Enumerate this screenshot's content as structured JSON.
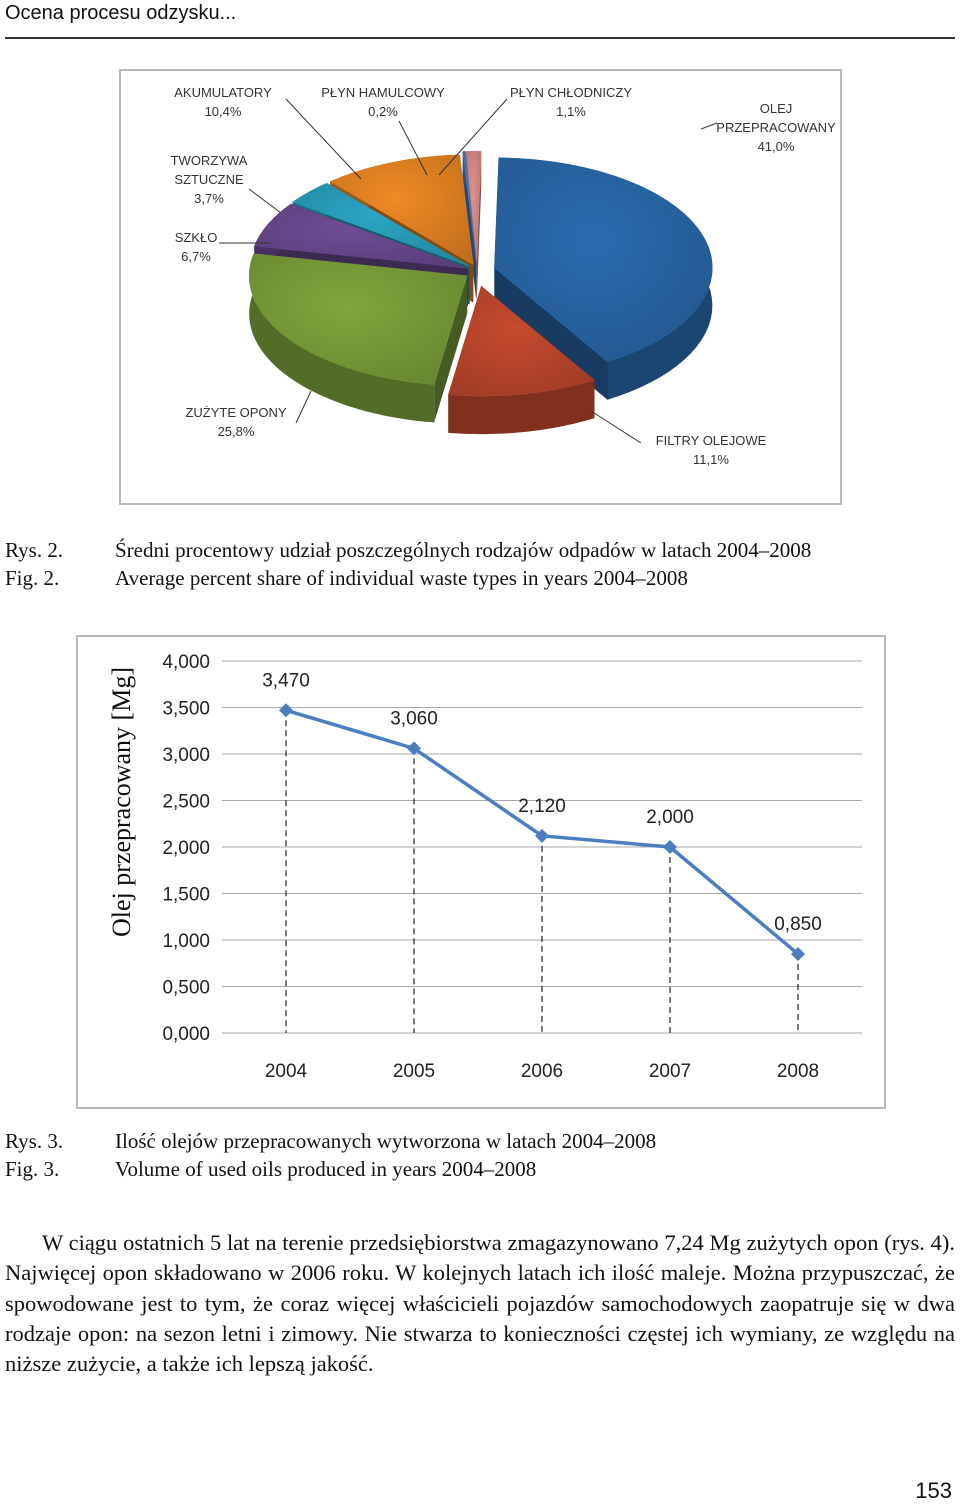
{
  "header": {
    "running_title": "Ocena procesu odzysku..."
  },
  "figure2": {
    "chart_data": {
      "type": "pie",
      "slices": [
        {
          "label": [
            "OLEJ",
            "PRZEPRACOWANY"
          ],
          "percent_text": "41,0%",
          "value": 41.0,
          "color": "#2a6cb0"
        },
        {
          "label": [
            "FILTRY OLEJOWE"
          ],
          "percent_text": "11,1%",
          "value": 11.1,
          "color": "#c64a2e"
        },
        {
          "label": [
            "ZUŻYTE OPONY"
          ],
          "percent_text": "25,8%",
          "value": 25.8,
          "color": "#7fa63c"
        },
        {
          "label": [
            "SZKŁO"
          ],
          "percent_text": "6,7%",
          "value": 6.7,
          "color": "#6e4c96"
        },
        {
          "label": [
            "TWORZYWA",
            "SZTUCZNE"
          ],
          "percent_text": "3,7%",
          "value": 3.7,
          "color": "#2aa6c4"
        },
        {
          "label": [
            "AKUMULATORY"
          ],
          "percent_text": "10,4%",
          "value": 10.4,
          "color": "#f08a24"
        },
        {
          "label": [
            "PŁYN HAMULCOWY"
          ],
          "percent_text": "0,2%",
          "value": 0.2,
          "color": "#4a7ec0"
        },
        {
          "label": [
            "PŁYN CHŁODNICZY"
          ],
          "percent_text": "1,1%",
          "value": 1.1,
          "color": "#e0908c"
        }
      ],
      "exploded": true,
      "style": "3d"
    },
    "caption_pl_label": "Rys. 2.",
    "caption_pl": "Średni procentowy udział poszczególnych rodzajów odpadów w latach 2004–2008",
    "caption_en_label": "Fig. 2.",
    "caption_en": "Average percent share of individual waste types in years 2004–2008"
  },
  "figure3": {
    "chart_data": {
      "type": "line",
      "x": [
        "2004",
        "2005",
        "2006",
        "2007",
        "2008"
      ],
      "series": [
        {
          "values": [
            3.47,
            3.06,
            2.12,
            2.0,
            0.85
          ],
          "data_labels": [
            "3,470",
            "3,060",
            "2,120",
            "2,000",
            "0,850"
          ],
          "color": "#4a7ec0"
        }
      ],
      "ylabel": "Olej przepracowany [Mg]",
      "ylim": [
        0,
        4
      ],
      "yticks": [
        "0,000",
        "0,500",
        "1,000",
        "1,500",
        "2,000",
        "2,500",
        "3,000",
        "3,500",
        "4,000"
      ],
      "ytick_values": [
        0,
        0.5,
        1,
        1.5,
        2,
        2.5,
        3,
        3.5,
        4
      ],
      "grid": true,
      "drop_lines": true
    },
    "caption_pl_label": "Rys. 3.",
    "caption_pl": "Ilość olejów przepracowanych wytworzona w latach 2004–2008",
    "caption_en_label": "Fig. 3.",
    "caption_en": "Volume of used oils produced in years 2004–2008"
  },
  "body": {
    "paragraph": "W ciągu ostatnich 5 lat na terenie przedsiębiorstwa zmagazynowano 7,24 Mg zużytych opon (rys. 4). Najwięcej opon składowano w 2006 roku. W kolejnych latach ich ilość maleje. Można przypuszczać, że spowodowane jest to tym, że coraz więcej właścicieli pojazdów samochodowych zaopatruje się w dwa rodzaje opon: na sezon letni i zimowy. Nie stwarza to konieczności częstej ich wymiany, ze względu na niższe zużycie, a także ich lepszą jakość."
  },
  "page_number": "153"
}
